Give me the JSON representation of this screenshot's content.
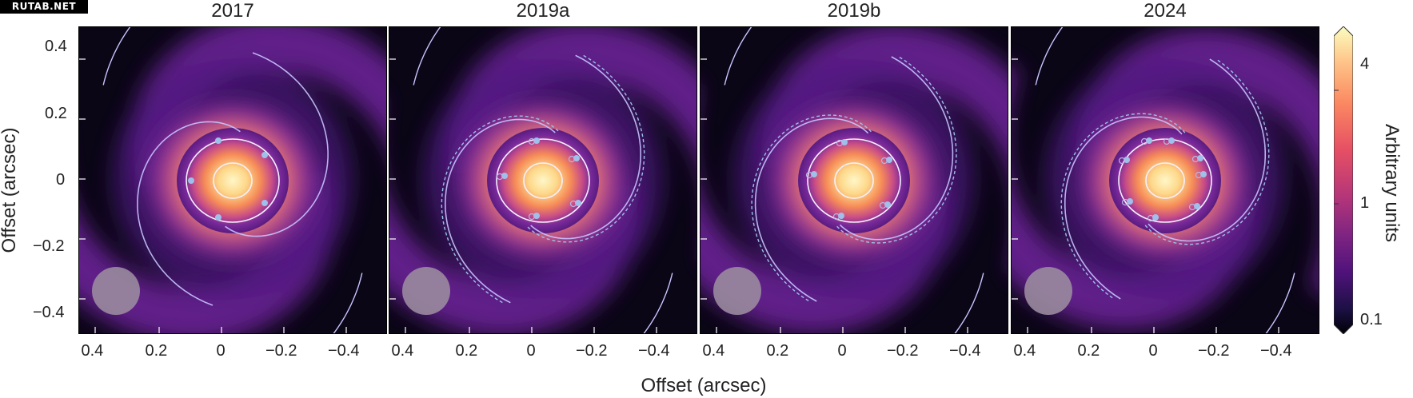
{
  "watermark": "RUTAB.NET",
  "panels": [
    {
      "title": "2017",
      "dashed": false
    },
    {
      "title": "2019a",
      "dashed": true
    },
    {
      "title": "2019b",
      "dashed": true
    },
    {
      "title": "2024",
      "dashed": true
    }
  ],
  "y_axis": {
    "label": "Offset (arcsec)",
    "ticks": [
      "0.4",
      "0.2",
      "0",
      "−0.2",
      "−0.4"
    ]
  },
  "x_axis": {
    "label": "Offset (arcsec)",
    "ticks": [
      "0.4",
      "0.2",
      "0",
      "−0.2",
      "−0.4"
    ]
  },
  "colorbar": {
    "label": "Arbitrary units",
    "ticks": [
      "4",
      "1",
      "0.1"
    ],
    "scale": "log"
  },
  "colors": {
    "inner": "#fff5c8",
    "mid": "#f28a55",
    "outer": "#7a2a9a",
    "background": "#05040d",
    "contour": "#f4f2ff",
    "markers": "#9ec0ea",
    "beam": "#9a8b9e"
  }
}
